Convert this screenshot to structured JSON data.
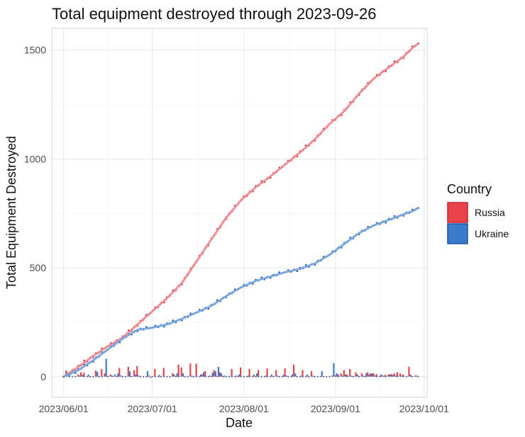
{
  "chart_data": {
    "type": "line",
    "title": "Total equipment destroyed through 2023-09-26",
    "xlabel": "Date",
    "ylabel": "Total Equipment Destroyed",
    "x_start": "2023-06-01",
    "x_end": "2023-09-26",
    "xlim_days": [
      -4,
      123
    ],
    "ylim": [
      -95,
      1600
    ],
    "x_ticks": [
      {
        "label": "2023/06/01",
        "day": 0
      },
      {
        "label": "2023/07/01",
        "day": 30
      },
      {
        "label": "2023/08/01",
        "day": 61
      },
      {
        "label": "2023/09/01",
        "day": 92
      },
      {
        "label": "2023/10/01",
        "day": 122
      }
    ],
    "y_ticks": [
      0,
      500,
      1000,
      1500
    ],
    "grid": true,
    "legend": {
      "title": "Country",
      "position": "right",
      "items": [
        {
          "label": "Russia",
          "color": "#e8434a"
        },
        {
          "label": "Ukraine",
          "color": "#3a7ccc"
        }
      ]
    },
    "series": [
      {
        "name": "Russia",
        "color": "#e8434a",
        "point_color": "#cc1f2a",
        "smooth_color": "#f08a8f",
        "cumulative_anchors": [
          [
            0,
            0
          ],
          [
            5,
            45
          ],
          [
            10,
            95
          ],
          [
            15,
            140
          ],
          [
            20,
            180
          ],
          [
            25,
            240
          ],
          [
            30,
            300
          ],
          [
            35,
            360
          ],
          [
            40,
            430
          ],
          [
            45,
            530
          ],
          [
            50,
            630
          ],
          [
            55,
            730
          ],
          [
            60,
            810
          ],
          [
            65,
            870
          ],
          [
            70,
            920
          ],
          [
            75,
            975
          ],
          [
            80,
            1030
          ],
          [
            85,
            1090
          ],
          [
            90,
            1160
          ],
          [
            95,
            1220
          ],
          [
            100,
            1300
          ],
          [
            105,
            1370
          ],
          [
            110,
            1420
          ],
          [
            115,
            1470
          ],
          [
            118,
            1510
          ],
          [
            120,
            1530
          ]
        ],
        "daily": [
          0,
          28,
          0,
          0,
          0,
          10,
          20,
          18,
          0,
          0,
          0,
          28,
          0,
          35,
          15,
          0,
          10,
          2,
          0,
          40,
          0,
          0,
          45,
          0,
          30,
          48,
          0,
          0,
          0,
          5,
          0,
          35,
          0,
          0,
          40,
          0,
          0,
          15,
          0,
          55,
          42,
          0,
          0,
          60,
          0,
          60,
          0,
          10,
          25,
          0,
          0,
          30,
          0,
          20,
          0,
          0,
          0,
          35,
          0,
          0,
          42,
          0,
          0,
          35,
          0,
          0,
          30,
          0,
          0,
          38,
          0,
          0,
          30,
          0,
          0,
          38,
          0,
          0,
          55,
          0,
          0,
          30,
          0,
          0,
          25,
          0,
          0,
          0,
          0,
          0,
          0,
          5,
          5,
          10,
          15,
          30,
          10,
          35,
          0,
          20,
          0,
          15,
          0,
          20,
          15,
          15,
          12,
          0,
          5,
          8,
          10,
          12,
          15,
          20,
          15,
          10,
          0,
          45,
          0,
          5
        ]
      },
      {
        "name": "Ukraine",
        "color": "#3a7ccc",
        "point_color": "#1f55a8",
        "smooth_color": "#7aa7dc",
        "cumulative_anchors": [
          [
            0,
            0
          ],
          [
            5,
            30
          ],
          [
            10,
            75
          ],
          [
            15,
            125
          ],
          [
            20,
            175
          ],
          [
            25,
            215
          ],
          [
            30,
            225
          ],
          [
            35,
            240
          ],
          [
            40,
            265
          ],
          [
            45,
            295
          ],
          [
            50,
            325
          ],
          [
            55,
            370
          ],
          [
            60,
            410
          ],
          [
            65,
            440
          ],
          [
            70,
            460
          ],
          [
            75,
            480
          ],
          [
            80,
            495
          ],
          [
            85,
            520
          ],
          [
            90,
            560
          ],
          [
            95,
            610
          ],
          [
            100,
            660
          ],
          [
            105,
            695
          ],
          [
            110,
            720
          ],
          [
            115,
            745
          ],
          [
            118,
            760
          ],
          [
            120,
            775
          ]
        ],
        "daily": [
          0,
          18,
          0,
          0,
          0,
          5,
          8,
          0,
          10,
          0,
          0,
          22,
          0,
          0,
          82,
          0,
          5,
          10,
          15,
          5,
          0,
          0,
          25,
          0,
          10,
          5,
          0,
          0,
          25,
          -5,
          0,
          0,
          8,
          0,
          0,
          0,
          0,
          10,
          15,
          0,
          15,
          0,
          0,
          5,
          0,
          0,
          10,
          20,
          0,
          5,
          18,
          25,
          45,
          15,
          5,
          0,
          0,
          0,
          5,
          10,
          0,
          0,
          5,
          0,
          10,
          15,
          0,
          0,
          5,
          0,
          10,
          0,
          5,
          0,
          8,
          5,
          0,
          10,
          15,
          0,
          5,
          0,
          10,
          0,
          5,
          0,
          0,
          25,
          0,
          0,
          0,
          62,
          15,
          0,
          5,
          10,
          0,
          5,
          0,
          10,
          0,
          5,
          15,
          10,
          15,
          5,
          0,
          10,
          5,
          0,
          10,
          8,
          5,
          0,
          5,
          0,
          0,
          10,
          0,
          5,
          0
        ]
      }
    ]
  }
}
